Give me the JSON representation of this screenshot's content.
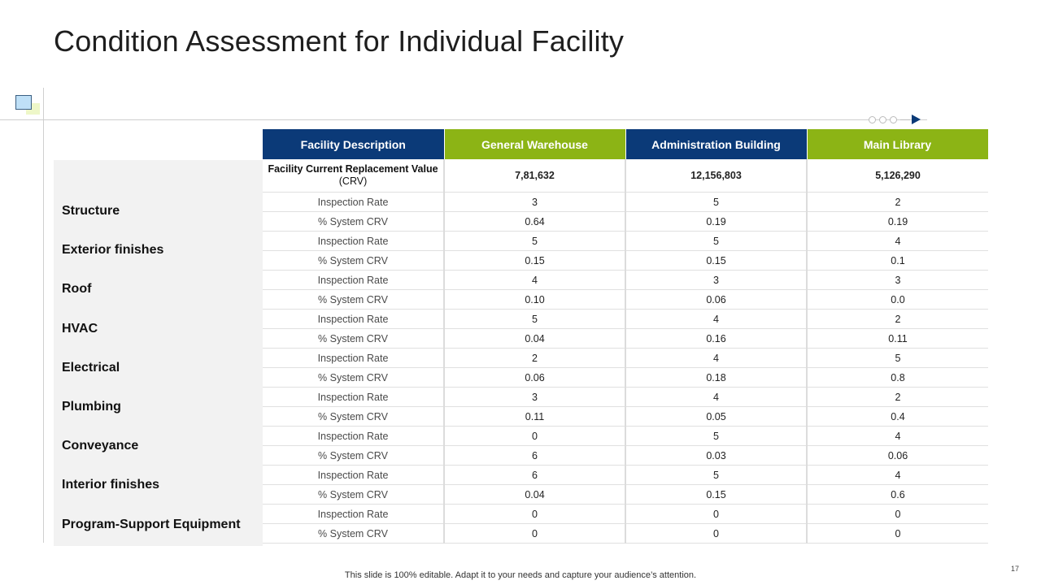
{
  "title": "Condition Assessment for Individual Facility",
  "colors": {
    "navy": "#0b3a78",
    "green": "#8cb415",
    "panel": "#f2f2f2"
  },
  "headers": [
    "Facility Description",
    "General Warehouse",
    "Administration Building",
    "Main Library"
  ],
  "crv_row": {
    "label_bold": "Facility Current Replacement Value",
    "label_plain": " (CRV)",
    "values": [
      "7,81,632",
      "12,156,803",
      "5,126,290"
    ]
  },
  "metrics": {
    "rate": "Inspection Rate",
    "crv": "% System CRV"
  },
  "categories": [
    {
      "name": "Structure",
      "rate": [
        "3",
        "5",
        "2"
      ],
      "crv": [
        "0.64",
        "0.19",
        "0.19"
      ]
    },
    {
      "name": "Exterior finishes",
      "rate": [
        "5",
        "5",
        "4"
      ],
      "crv": [
        "0.15",
        "0.15",
        "0.1"
      ]
    },
    {
      "name": "Roof",
      "rate": [
        "4",
        "3",
        "3"
      ],
      "crv": [
        "0.10",
        "0.06",
        "0.0"
      ]
    },
    {
      "name": "HVAC",
      "rate": [
        "5",
        "4",
        "2"
      ],
      "crv": [
        "0.04",
        "0.16",
        "0.11"
      ]
    },
    {
      "name": "Electrical",
      "rate": [
        "2",
        "4",
        "5"
      ],
      "crv": [
        "0.06",
        "0.18",
        "0.8"
      ]
    },
    {
      "name": "Plumbing",
      "rate": [
        "3",
        "4",
        "2"
      ],
      "crv": [
        "0.11",
        "0.05",
        "0.4"
      ]
    },
    {
      "name": "Conveyance",
      "rate": [
        "0",
        "5",
        "4"
      ],
      "crv": [
        "6",
        "0.03",
        "0.06"
      ]
    },
    {
      "name": "Interior finishes",
      "rate": [
        "6",
        "5",
        "4"
      ],
      "crv": [
        "0.04",
        "0.15",
        "0.6"
      ]
    },
    {
      "name": "Program-Support Equipment",
      "rate": [
        "0",
        "0",
        "0"
      ],
      "crv": [
        "0",
        "0",
        "0"
      ]
    }
  ],
  "footer": "This slide is 100% editable. Adapt it to your needs and capture your audience’s attention.",
  "page_number": "17"
}
